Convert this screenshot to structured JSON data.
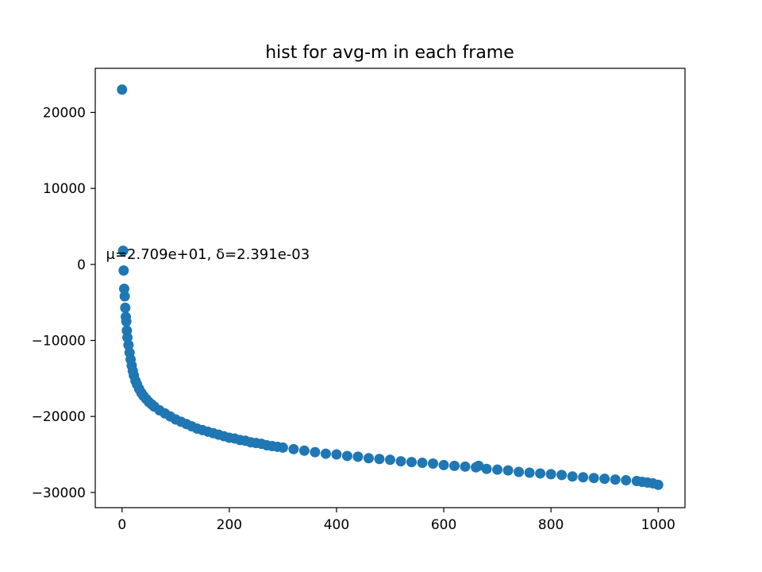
{
  "chart_data": {
    "type": "scatter",
    "title": "hist for avg-m in each frame",
    "xlabel": "",
    "ylabel": "",
    "xlim": [
      -50,
      1050
    ],
    "ylim": [
      -32000,
      25800
    ],
    "xticks": [
      0,
      200,
      400,
      600,
      800,
      1000
    ],
    "yticks": [
      -30000,
      -20000,
      -10000,
      0,
      10000,
      20000
    ],
    "xtick_labels": [
      "0",
      "200",
      "400",
      "600",
      "800",
      "1000"
    ],
    "ytick_labels": [
      "−30000",
      "−20000",
      "−10000",
      "0",
      "10000",
      "20000"
    ],
    "grid": false,
    "annotation": {
      "text": "μ=2.709e+01, δ=2.391e-03",
      "x": -30,
      "y": 700
    },
    "marker_color": "#1f77b4",
    "series": [
      {
        "x": [
          0,
          2,
          3,
          4,
          5,
          6,
          7,
          8,
          9,
          10,
          12,
          14,
          16,
          18,
          20,
          22,
          25,
          28,
          32,
          36,
          40,
          45,
          50,
          55,
          60,
          70,
          80,
          90,
          100,
          110,
          120,
          130,
          140,
          150,
          160,
          170,
          180,
          190,
          200,
          210,
          220,
          230,
          240,
          250,
          260,
          270,
          280,
          290,
          300,
          320,
          340,
          360,
          380,
          400,
          420,
          440,
          460,
          480,
          500,
          520,
          540,
          560,
          580,
          600,
          620,
          640,
          660,
          665,
          680,
          700,
          720,
          740,
          760,
          780,
          800,
          820,
          840,
          860,
          880,
          900,
          920,
          940,
          960,
          970,
          980,
          990,
          1000
        ],
        "y": [
          23000,
          1800,
          -800,
          -3200,
          -4200,
          -5700,
          -6900,
          -7500,
          -8700,
          -9600,
          -10600,
          -11600,
          -12500,
          -13300,
          -14000,
          -14600,
          -15300,
          -15800,
          -16400,
          -16900,
          -17300,
          -17700,
          -18100,
          -18400,
          -18700,
          -19200,
          -19600,
          -20000,
          -20400,
          -20700,
          -21000,
          -21300,
          -21600,
          -21800,
          -22000,
          -22200,
          -22400,
          -22600,
          -22800,
          -22900,
          -23100,
          -23200,
          -23400,
          -23500,
          -23600,
          -23800,
          -23900,
          -24000,
          -24100,
          -24300,
          -24500,
          -24700,
          -24900,
          -25000,
          -25200,
          -25300,
          -25500,
          -25600,
          -25700,
          -25900,
          -26000,
          -26100,
          -26200,
          -26400,
          -26500,
          -26600,
          -26700,
          -26500,
          -26900,
          -27000,
          -27100,
          -27300,
          -27400,
          -27500,
          -27600,
          -27700,
          -27900,
          -28000,
          -28100,
          -28200,
          -28300,
          -28400,
          -28500,
          -28600,
          -28700,
          -28800,
          -29000
        ]
      }
    ]
  }
}
